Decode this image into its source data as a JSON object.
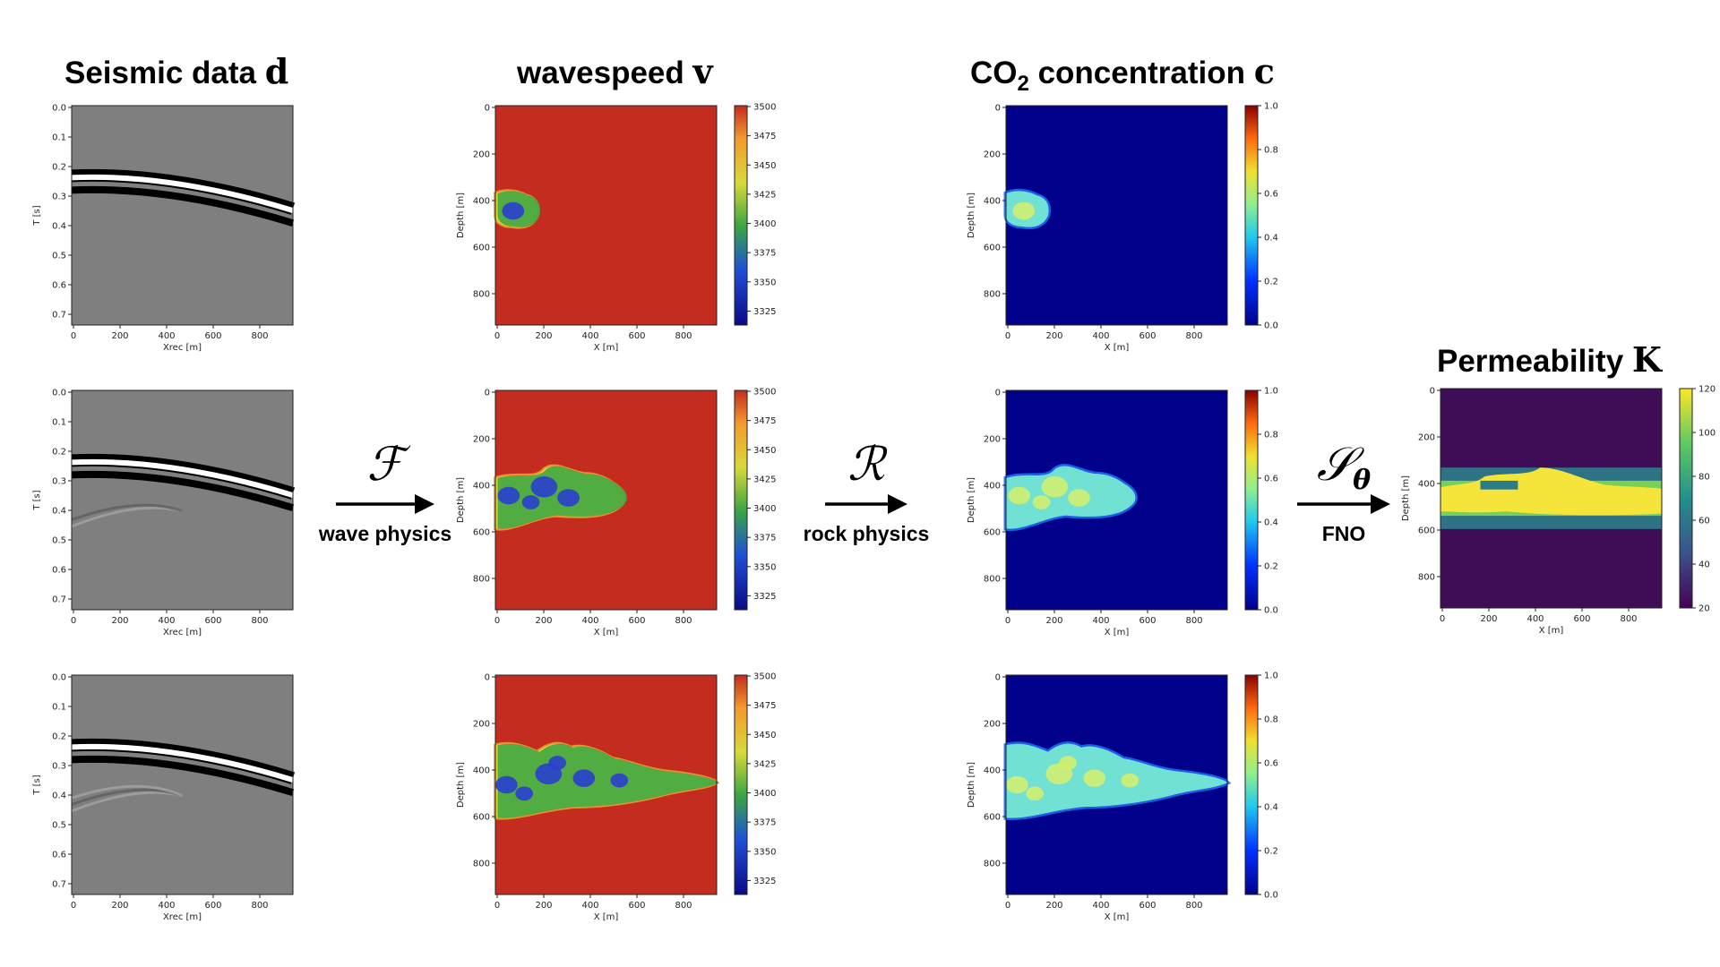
{
  "titles": {
    "seismic": {
      "text": "Seismic data ",
      "symbol": "d"
    },
    "wavespeed": {
      "text": "wavespeed ",
      "symbol": "v"
    },
    "co2": {
      "pre": "CO",
      "sub": "2",
      "post": " concentration ",
      "symbol": "c"
    },
    "perm": {
      "text": "Permeability ",
      "symbol": "K"
    }
  },
  "operators": {
    "wave": {
      "symbol": "ℱ",
      "label": "wave physics"
    },
    "rock": {
      "symbol": "ℛ",
      "label": "rock physics"
    },
    "fno": {
      "symbol": "𝒮",
      "sub": "θ",
      "label": "FNO"
    }
  },
  "axes": {
    "seismic": {
      "xlabel": "Xrec [m]",
      "ylabel": "T [s]",
      "xticks": [
        "0",
        "200",
        "400",
        "600",
        "800"
      ],
      "yticks": [
        "0.0",
        "0.1",
        "0.2",
        "0.3",
        "0.4",
        "0.5",
        "0.6",
        "0.7"
      ]
    },
    "model": {
      "xlabel": "X [m]",
      "ylabel": "Depth [m]",
      "xticks": [
        "0",
        "200",
        "400",
        "600",
        "800"
      ],
      "yticks": [
        "0",
        "200",
        "400",
        "600",
        "800"
      ]
    }
  },
  "colorbars": {
    "wavespeed": [
      "3500",
      "3475",
      "3450",
      "3425",
      "3400",
      "3375",
      "3350",
      "3325"
    ],
    "co2": [
      "1.0",
      "0.8",
      "0.6",
      "0.4",
      "0.2",
      "0.0"
    ],
    "perm": [
      "120",
      "100",
      "80",
      "60",
      "40",
      "20"
    ]
  },
  "colors": {
    "velocity_bg": "#c42c20",
    "co2_bg": "#00008b",
    "perm_bg": "#3f0d55",
    "perm_high": "#f5e43a",
    "seis_bg": "#7f7f7f"
  }
}
